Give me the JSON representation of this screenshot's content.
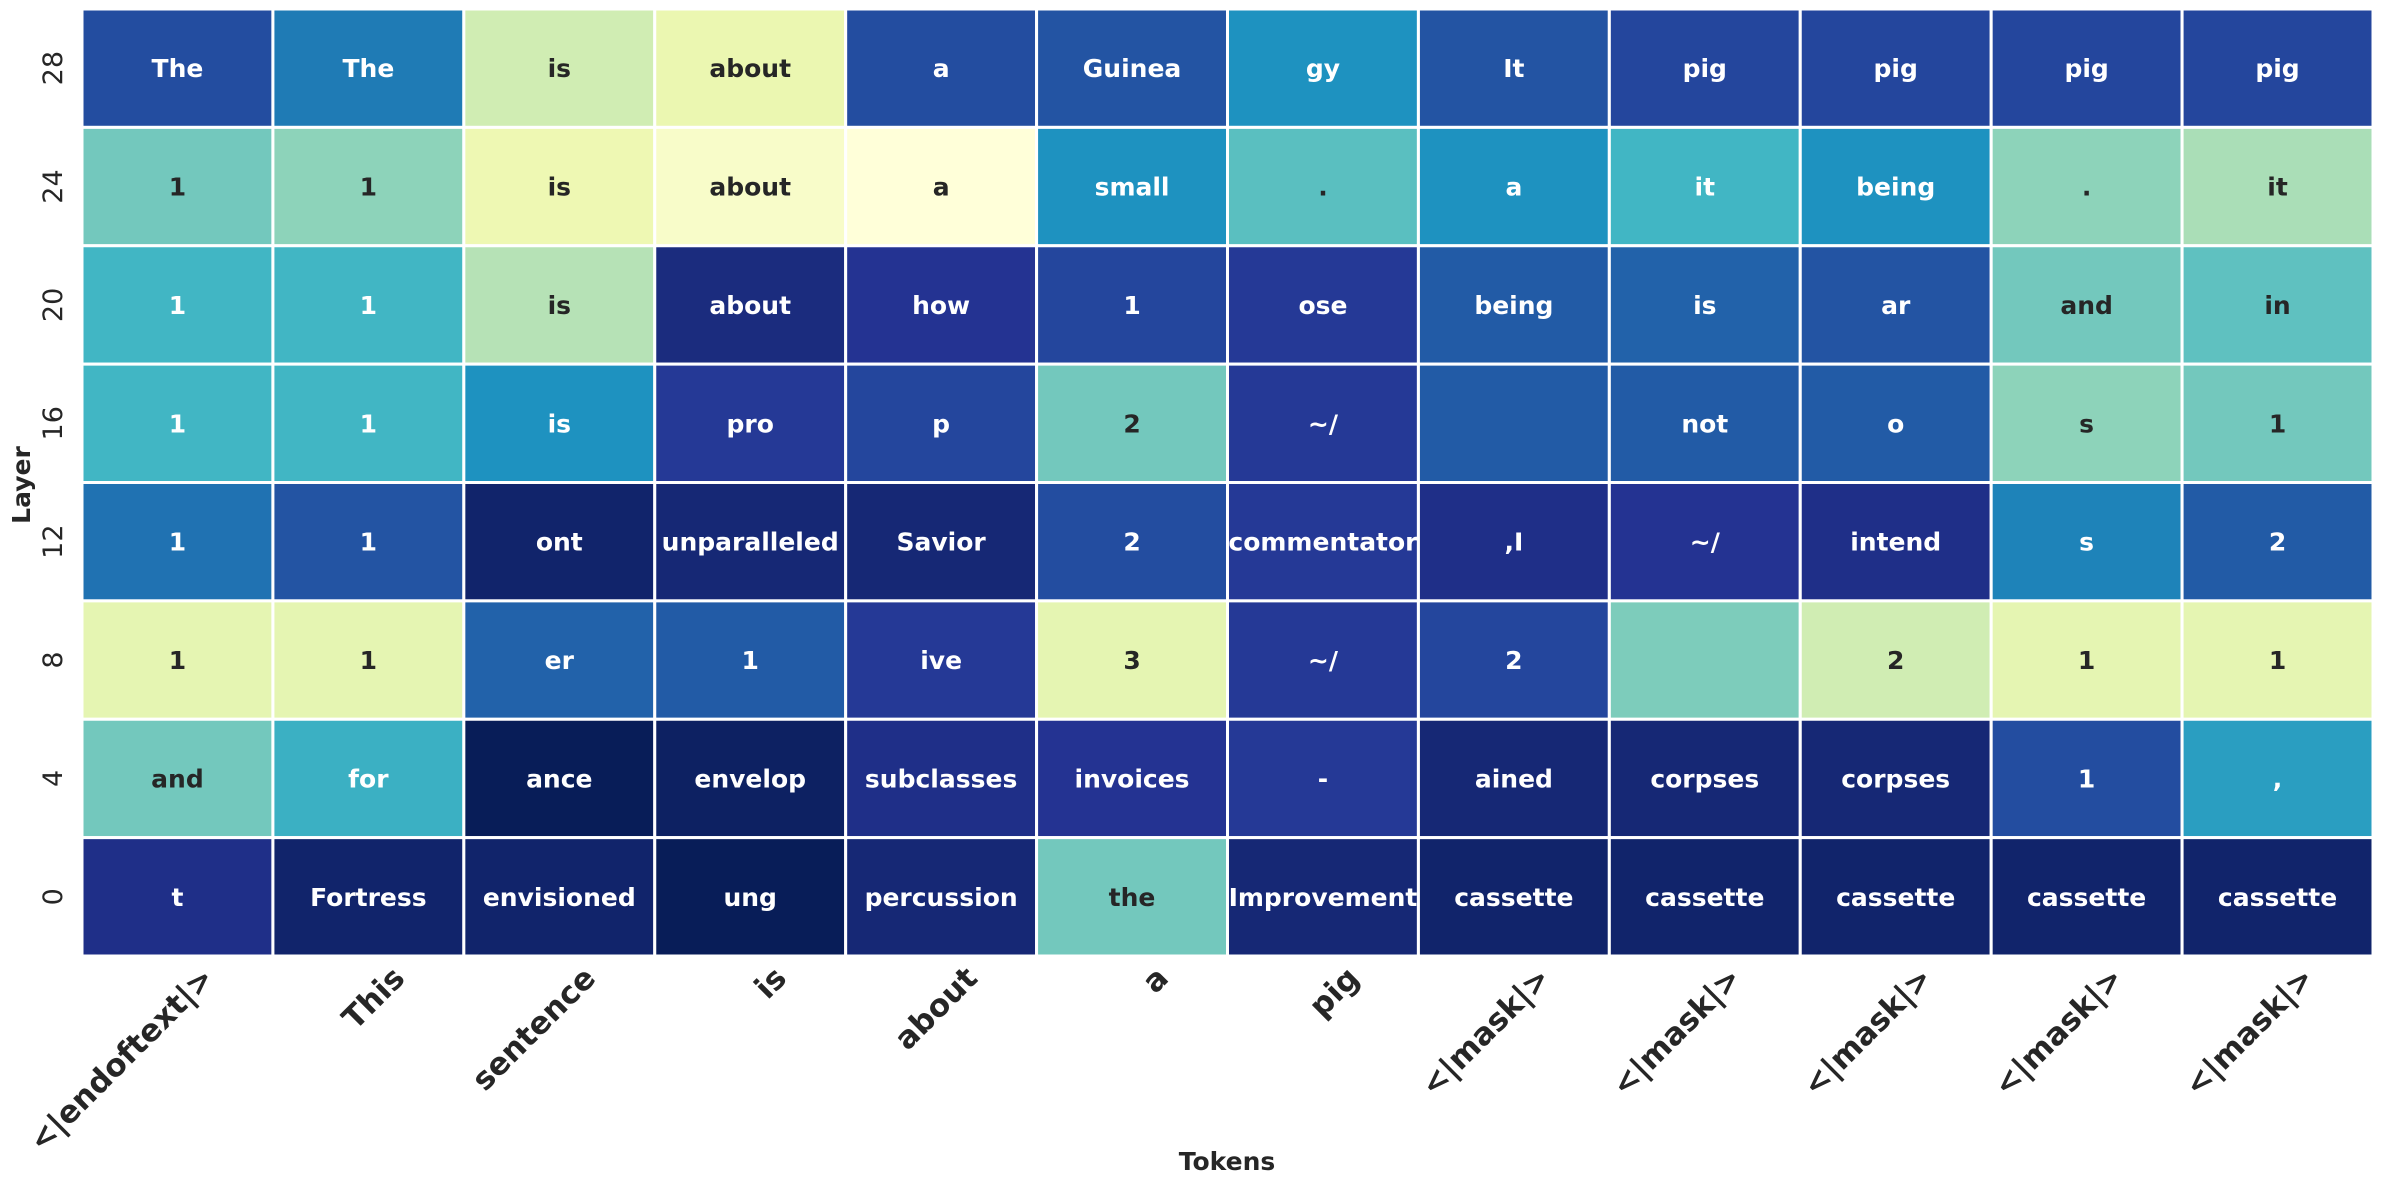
{
  "chart_data": {
    "type": "heatmap",
    "xlabel": "Tokens",
    "ylabel": "Layer",
    "colormap": "YlGnBu",
    "grid": false,
    "x_tokens": [
      "<|endoftext|>",
      "This",
      "sentence",
      "is",
      "about",
      "a",
      "pig",
      "<|mask|>",
      "<|mask|>",
      "<|mask|>",
      "<|mask|>",
      "<|mask|>"
    ],
    "y_layers": [
      "28",
      "24",
      "20",
      "16",
      "12",
      "8",
      "4",
      "0"
    ],
    "cells": [
      [
        "The",
        "The",
        "is",
        "about",
        "a",
        "Guinea",
        "gy",
        "It",
        "pig",
        "pig",
        "pig",
        "pig"
      ],
      [
        "1",
        "1",
        "is",
        "about",
        "a",
        "small",
        ".",
        "a",
        "it",
        "being",
        ".",
        "it"
      ],
      [
        "1",
        "1",
        "is",
        "about",
        "how",
        "1",
        "ose",
        "being",
        "is",
        "ar",
        "and",
        "in"
      ],
      [
        "1",
        "1",
        "is",
        "pro",
        "p",
        "2",
        "~/",
        "",
        "not",
        "o",
        "s",
        "1"
      ],
      [
        "1",
        "1",
        "ont",
        "unparalleled",
        "Savior",
        "2",
        "commentator",
        ",I",
        "~/",
        "intend",
        "s",
        "2"
      ],
      [
        "1",
        "1",
        "er",
        "1",
        "ive",
        "3",
        "~/",
        "2",
        "",
        "2",
        "1",
        "1"
      ],
      [
        "and",
        "for",
        "ance",
        "envelop",
        "subclasses",
        "invoices",
        "-",
        "ained",
        "corpses",
        "corpses",
        "1",
        ","
      ],
      [
        "t",
        "Fortress",
        "envisioned",
        "ung",
        "percussion",
        "the",
        "Improvement",
        "cassette",
        "cassette",
        "cassette",
        "cassette",
        "cassette"
      ]
    ],
    "values": [
      [
        0.8,
        0.68,
        0.22,
        0.13,
        0.8,
        0.78,
        0.62,
        0.78,
        0.82,
        0.82,
        0.82,
        0.82
      ],
      [
        0.4,
        0.35,
        0.12,
        0.05,
        0.0,
        0.62,
        0.45,
        0.62,
        0.5,
        0.62,
        0.35,
        0.3
      ],
      [
        0.5,
        0.5,
        0.28,
        0.92,
        0.88,
        0.82,
        0.86,
        0.76,
        0.74,
        0.78,
        0.4,
        0.44
      ],
      [
        0.5,
        0.5,
        0.62,
        0.86,
        0.82,
        0.4,
        0.86,
        0.76,
        0.76,
        0.76,
        0.35,
        0.4
      ],
      [
        0.7,
        0.78,
        0.96,
        0.94,
        0.94,
        0.8,
        0.86,
        0.9,
        0.88,
        0.9,
        0.66,
        0.76
      ],
      [
        0.15,
        0.15,
        0.74,
        0.76,
        0.86,
        0.15,
        0.86,
        0.82,
        0.38,
        0.22,
        0.15,
        0.15
      ],
      [
        0.4,
        0.52,
        1.0,
        0.98,
        0.9,
        0.88,
        0.86,
        0.94,
        0.94,
        0.94,
        0.8,
        0.58
      ],
      [
        0.9,
        0.96,
        0.96,
        1.0,
        0.94,
        0.4,
        0.94,
        0.96,
        0.96,
        0.96,
        0.96,
        0.96
      ]
    ]
  }
}
